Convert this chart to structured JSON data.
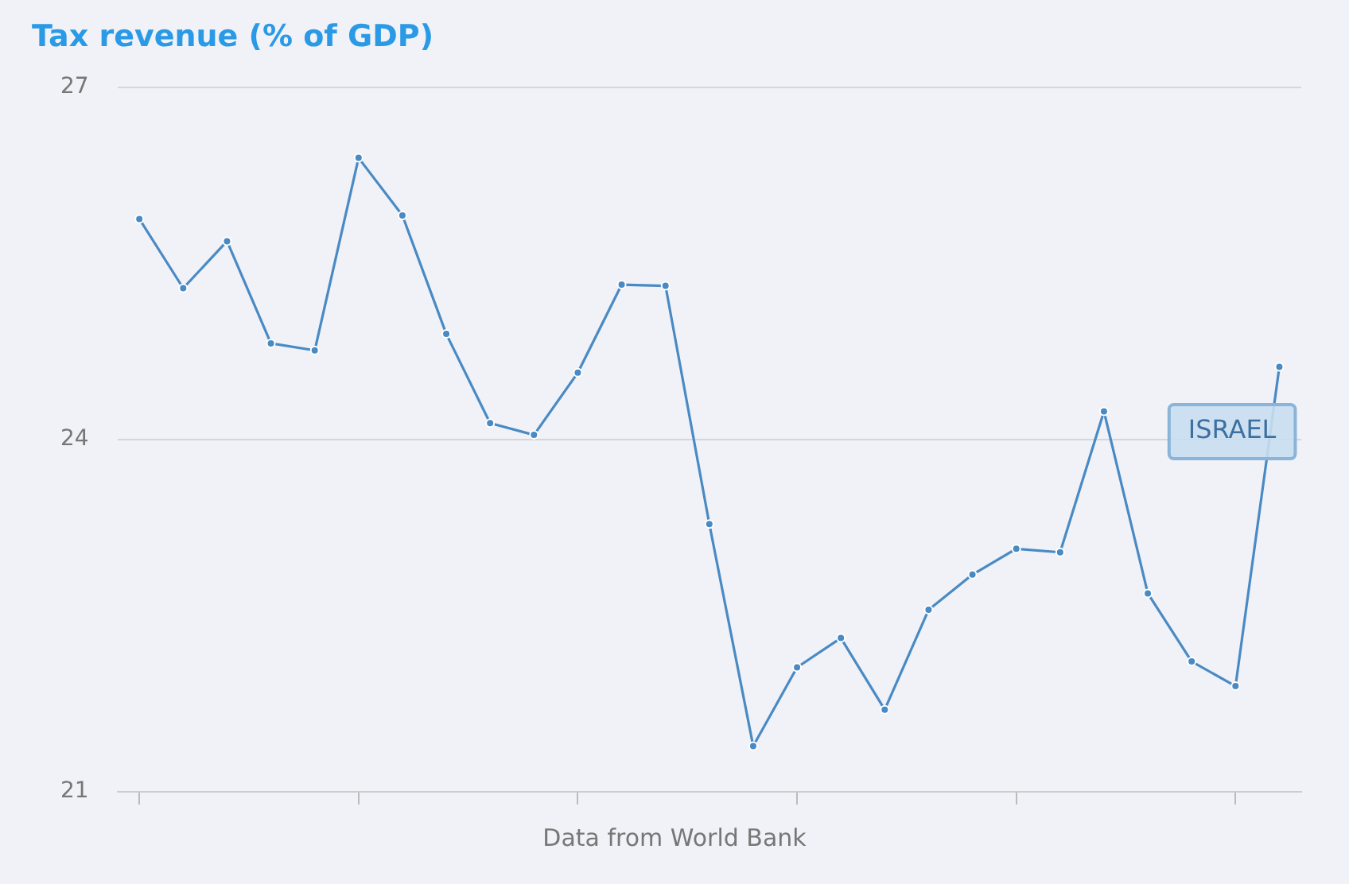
{
  "chart_data": {
    "type": "line",
    "title": "Tax revenue (% of GDP)",
    "categories": [
      null,
      null,
      null,
      null,
      null,
      null,
      null,
      null,
      null,
      null,
      null,
      null,
      null,
      null,
      null,
      null,
      null,
      null,
      null,
      null,
      null,
      null,
      null,
      null,
      null,
      null,
      null
    ],
    "series": [
      {
        "name": "ISRAEL",
        "color": "#4a8ac4",
        "values": [
          25.88,
          25.29,
          25.69,
          24.82,
          24.76,
          26.4,
          25.91,
          24.9,
          24.14,
          24.04,
          24.57,
          25.32,
          25.31,
          23.28,
          21.39,
          22.06,
          22.31,
          21.7,
          22.55,
          22.85,
          23.07,
          23.04,
          24.24,
          22.69,
          22.11,
          21.9,
          24.62
        ]
      }
    ],
    "ylim": [
      21,
      27
    ],
    "yticks": [
      21,
      24,
      27
    ],
    "grid": "y",
    "tick_labels": "y",
    "legend": false,
    "marker": "circle",
    "annotations": [
      "Data from World Bank"
    ]
  }
}
